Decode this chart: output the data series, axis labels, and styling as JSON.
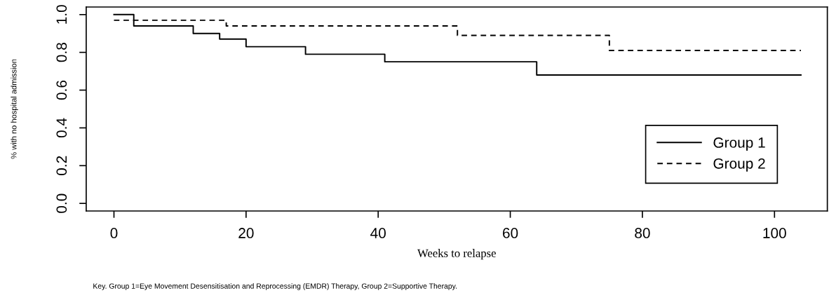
{
  "chart_data": {
    "type": "step",
    "xlabel": "Weeks to relapse",
    "ylabel": "% with no hospital admission",
    "series": [
      {
        "name": "Group 1",
        "color": "#000000",
        "line_style": "solid",
        "x": [
          0,
          3,
          12,
          16,
          20,
          29,
          41,
          64,
          104
        ],
        "values": [
          1.0,
          0.94,
          0.9,
          0.87,
          0.83,
          0.79,
          0.75,
          0.68,
          0.68
        ]
      },
      {
        "name": "Group 2",
        "color": "#000000",
        "line_style": "dashed",
        "x": [
          0,
          17,
          52,
          75,
          104
        ],
        "values": [
          0.97,
          0.94,
          0.89,
          0.81,
          0.81
        ]
      }
    ],
    "xlim": [
      -4.2,
      108
    ],
    "ylim": [
      -0.04,
      1.04
    ],
    "xticks": [
      0,
      20,
      40,
      60,
      80,
      100
    ],
    "yticks": [
      {
        "value": 0,
        "label": "0.0"
      },
      {
        "value": 0.2,
        "label": "0.2"
      },
      {
        "value": 0.4,
        "label": "0.4"
      },
      {
        "value": 0.6,
        "label": "0.6"
      },
      {
        "value": 0.8,
        "label": "0.8"
      },
      {
        "value": 1,
        "label": "1.0"
      }
    ],
    "grid": false,
    "legend": "bottom right",
    "marker": "none",
    "annotations": [
      "Key. Group 1=Eye Movement Desensitisation and Reprocessing (EMDR) Therapy, Group 2=Supportive Therapy."
    ]
  }
}
